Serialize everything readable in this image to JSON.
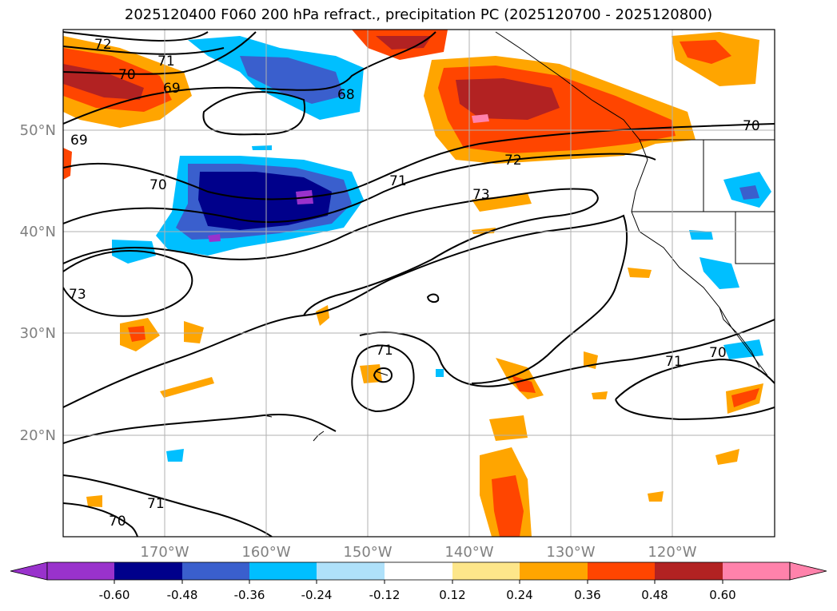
{
  "title": "2025120400 F060 200 hPa refract., precipitation PC (2025120700 - 2025120800)",
  "map": {
    "lat_labels": [
      "50°N",
      "40°N",
      "30°N",
      "20°N"
    ],
    "lon_labels": [
      "170°W",
      "160°W",
      "150°W",
      "140°W",
      "130°W",
      "120°W"
    ],
    "contour_labels": [
      "72",
      "71",
      "70",
      "69",
      "68",
      "69",
      "70",
      "71",
      "72",
      "73",
      "73",
      "71",
      "71",
      "70",
      "71",
      "70",
      "70"
    ],
    "colorbar": {
      "ticks": [
        "-0.60",
        "-0.48",
        "-0.36",
        "-0.24",
        "-0.12",
        "0.12",
        "0.24",
        "0.36",
        "0.48",
        "0.60"
      ],
      "colors": [
        "#9932cc",
        "#00008b",
        "#3a5fcd",
        "#00bfff",
        "#afe1fa",
        "#ffffff",
        "#fde68a",
        "#ffa500",
        "#ff4500",
        "#b22222",
        "#ff82ab",
        "#ff82ab"
      ]
    }
  }
}
